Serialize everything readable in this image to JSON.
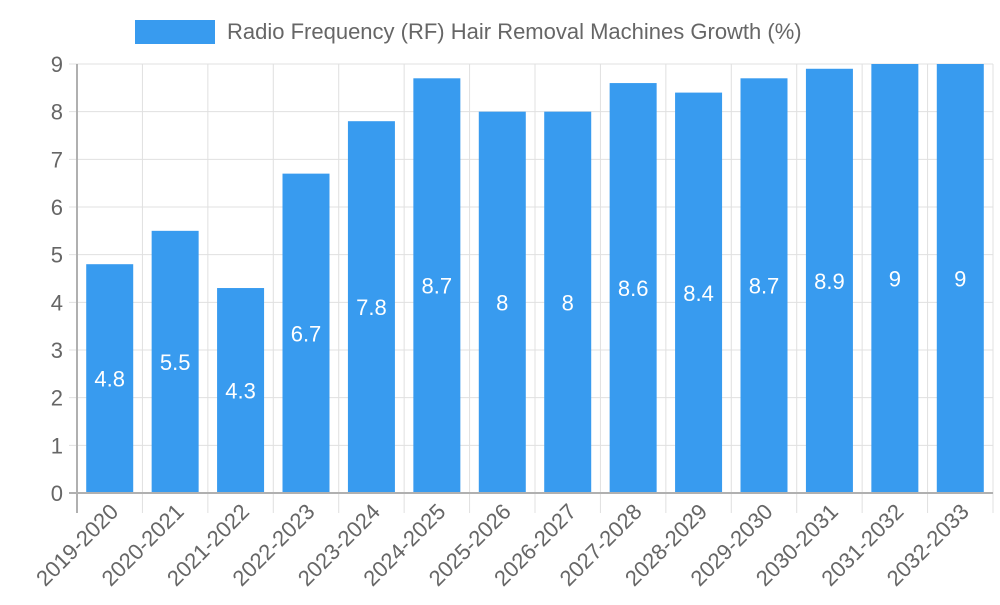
{
  "chart_data": {
    "type": "bar",
    "title": "",
    "legend": [
      {
        "label": "Radio Frequency (RF) Hair Removal Machines Growth (%)",
        "color": "#389BEF"
      }
    ],
    "legend_position": "top",
    "categories": [
      "2019-2020",
      "2020-2021",
      "2021-2022",
      "2022-2023",
      "2023-2024",
      "2024-2025",
      "2025-2026",
      "2026-2027",
      "2027-2028",
      "2028-2029",
      "2029-2030",
      "2030-2031",
      "2031-2032",
      "2032-2033"
    ],
    "series": [
      {
        "name": "Radio Frequency (RF) Hair Removal Machines Growth (%)",
        "values": [
          4.8,
          5.5,
          4.3,
          6.7,
          7.8,
          8.7,
          8,
          8,
          8.6,
          8.4,
          8.7,
          8.9,
          9,
          9
        ],
        "color": "#389BEF"
      }
    ],
    "data_labels": [
      "4.8",
      "5.5",
      "4.3",
      "6.7",
      "7.8",
      "8.7",
      "8",
      "8",
      "8.6",
      "8.4",
      "8.7",
      "8.9",
      "9",
      "9"
    ],
    "xlabel": "",
    "ylabel": "",
    "ylim": [
      0,
      9
    ],
    "yticks": [
      0,
      1,
      2,
      3,
      4,
      5,
      6,
      7,
      8,
      9
    ],
    "grid": true,
    "xtick_rotation": -45
  },
  "legend": {
    "label": "Radio Frequency (RF) Hair Removal Machines Growth (%)"
  },
  "colors": {
    "bar": "#389BEF",
    "grid": "#e0e0e0",
    "axis": "#b0b0b0",
    "tick_text": "#666666",
    "label_text": "#ffffff"
  }
}
